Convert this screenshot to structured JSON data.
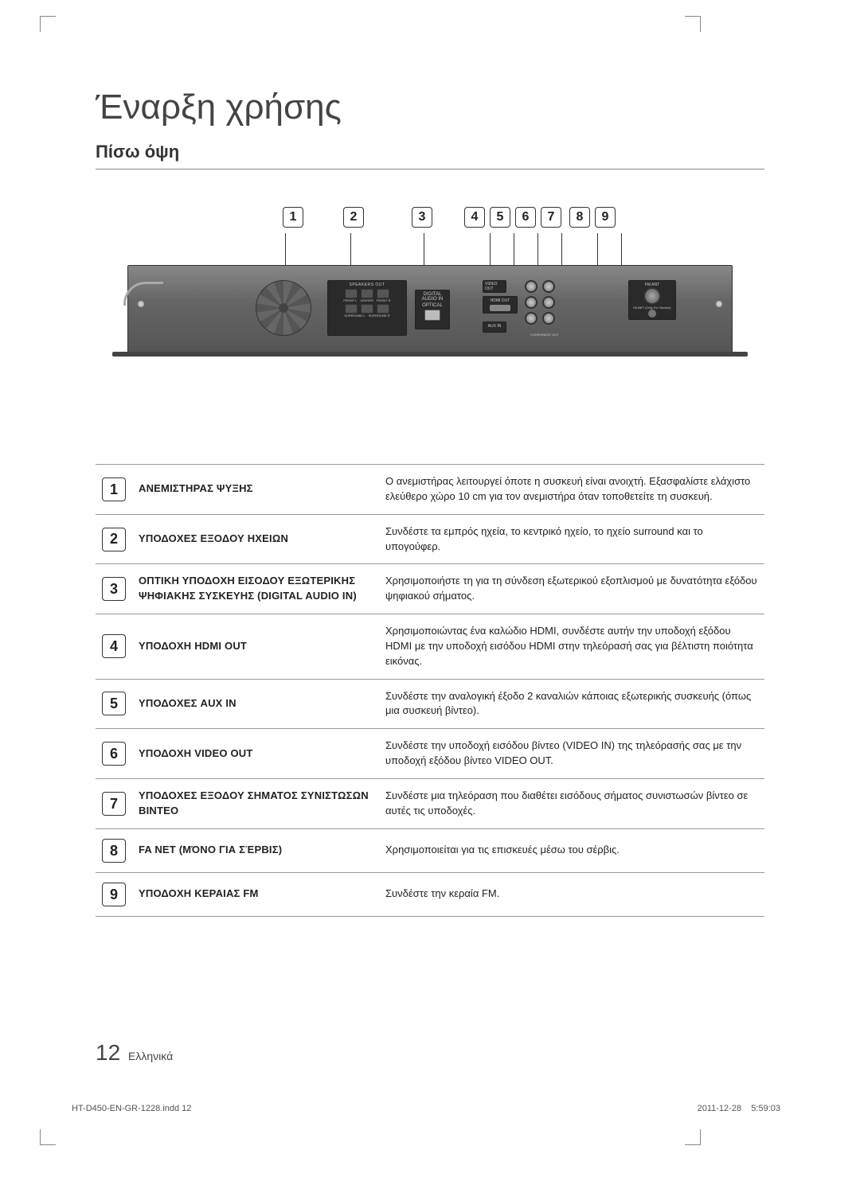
{
  "page": {
    "title": "Έναρξη χρήσης",
    "subtitle": "Πίσω όψη",
    "page_number": "12",
    "page_lang": "Ελληνικά",
    "footer_file": "HT-D450-EN-GR-1228.indd   12",
    "footer_date": "2011-12-28",
    "footer_time": "5:59:03"
  },
  "colors": {
    "text": "#222222",
    "rule": "#999999",
    "device_body": "#666666",
    "panel": "#2a2a2a",
    "accent": "#333333"
  },
  "diagram": {
    "callouts": [
      "1",
      "2",
      "3",
      "4",
      "5",
      "6",
      "7",
      "8",
      "9"
    ],
    "labels": {
      "speakers_out": "SPEAKERS OUT",
      "front_l": "FRONT L",
      "center": "CENTER",
      "front_r": "FRONT R",
      "surround_l": "SURROUND L",
      "surround_r": "SURROUND R",
      "digital_audio_in": "DIGITAL AUDIO IN",
      "optical": "OPTICAL",
      "hdmi_out": "HDMI OUT",
      "video_out": "VIDEO OUT",
      "aux_in": "AUX IN",
      "compo_out": "COMPONENT OUT",
      "fm_ant": "FM ANT",
      "fa_net": "FA NET (Only For Service)"
    }
  },
  "rows": [
    {
      "num": "1",
      "label": "ΑΝΕΜΙΣΤΗΡΑΣ ΨΥΞΗΣ",
      "desc": "Ο ανεμιστήρας λειτουργεί όποτε η συσκευή είναι ανοιχτή. Εξασφαλίστε ελάχιστο ελεύθερο χώρο 10 cm για τον ανεμιστήρα όταν τοποθετείτε τη συσκευή."
    },
    {
      "num": "2",
      "label": "ΥΠΟΔΟΧΕΣ ΕΞΟΔΟΥ ΗΧΕΙΩΝ",
      "desc": "Συνδέστε τα εμπρός ηχεία, το κεντρικό ηχείο, το ηχείο surround και το υπογούφερ."
    },
    {
      "num": "3",
      "label": "ΟΠΤΙΚΗ ΥΠΟΔΟΧΗ ΕΙΣΟΔΟΥ ΕΞΩΤΕΡΙΚΗΣ ΨΗΦΙΑΚΗΣ ΣΥΣΚΕΥΗΣ (DIGITAL AUDIO IN)",
      "desc": "Χρησιμοποιήστε τη για τη σύνδεση εξωτερικού εξοπλισμού με δυνατότητα εξόδου ψηφιακού σήματος."
    },
    {
      "num": "4",
      "label": "ΥΠΟΔΟΧΗ HDMI OUT",
      "desc": "Χρησιμοποιώντας ένα καλώδιο HDMI, συνδέστε αυτήν την υποδοχή εξόδου HDMI με την υποδοχή εισόδου HDMI στην τηλεόρασή σας για βέλτιστη ποιότητα εικόνας."
    },
    {
      "num": "5",
      "label": "ΥΠΟΔΟΧΕΣ AUX IN",
      "desc": "Συνδέστε την αναλογική έξοδο 2 καναλιών κάποιας εξωτερικής συσκευής (όπως μια συσκευή βίντεο)."
    },
    {
      "num": "6",
      "label": "ΥΠΟΔΟΧΗ VIDEO OUT",
      "desc": "Συνδέστε την υποδοχή εισόδου βίντεο (VIDEO IN) της τηλεόρασής σας με την υποδοχή εξόδου βίντεο VIDEO OUT."
    },
    {
      "num": "7",
      "label": "ΥΠΟΔΟΧΕΣ ΕΞΟΔΟΥ ΣΗΜΑΤΟΣ ΣΥΝΙΣΤΩΣΩΝ ΒΙΝΤΕΟ",
      "desc": "Συνδέστε μια τηλεόραση που διαθέτει εισόδους σήματος συνιστωσών βίντεο σε αυτές τις υποδοχές."
    },
    {
      "num": "8",
      "label": "FA NET (ΜΌΝΟ ΓΙΑ ΣΈΡΒΙΣ)",
      "desc": "Χρησιμοποιείται για τις επισκευές μέσω του σέρβις."
    },
    {
      "num": "9",
      "label": "ΥΠΟΔΟΧΗ ΚΕΡΑΙΑΣ FM",
      "desc": "Συνδέστε την κεραία FM."
    }
  ]
}
